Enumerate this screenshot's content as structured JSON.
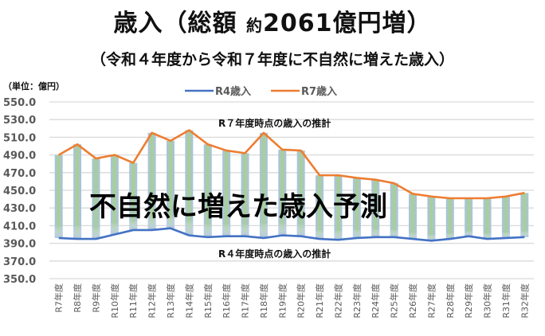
{
  "title": {
    "main": "歳入（総額 ",
    "small": "約",
    "amount": "2061",
    "rest": "億円増）"
  },
  "subtitle": "（令和４年度から令和７年度に不自然に増えた歳入）",
  "chart_data": {
    "type": "line",
    "unit_label": "（単位：億円）",
    "ylim": [
      350,
      550
    ],
    "yticks": [
      "350.0",
      "370.0",
      "390.0",
      "410.0",
      "430.0",
      "450.0",
      "470.0",
      "490.0",
      "510.0",
      "530.0",
      "550.0"
    ],
    "ytick_values": [
      350,
      370,
      390,
      410,
      430,
      450,
      470,
      490,
      510,
      530,
      550
    ],
    "grid": true,
    "legend_position": "top-center",
    "categories": [
      "R7年度",
      "R8年度",
      "R9年度",
      "R10年度",
      "R11年度",
      "R12年度",
      "R13年度",
      "R14年度",
      "R15年度",
      "R16年度",
      "R17年度",
      "R18年度",
      "R19年度",
      "R20年度",
      "R21年度",
      "R22年度",
      "R23年度",
      "R24年度",
      "R25年度",
      "R26年度",
      "R27年度",
      "R28年度",
      "R29年度",
      "R30年度",
      "R31年度",
      "R32年度"
    ],
    "series": [
      {
        "name": "R4歳入",
        "color": "#4472c4",
        "values": [
          396,
          395,
          395,
          400,
          405,
          405,
          407,
          399,
          397,
          398,
          398,
          396,
          399,
          398,
          395,
          394,
          396,
          397,
          397,
          395,
          393,
          395,
          398,
          395,
          396,
          397
        ]
      },
      {
        "name": "R7歳入",
        "color": "#ed7d31",
        "values": [
          490,
          502,
          486,
          490,
          481,
          515,
          506,
          518,
          502,
          495,
          492,
          515,
          496,
          495,
          467,
          467,
          464,
          462,
          458,
          446,
          443,
          441,
          441,
          441,
          443,
          447
        ]
      }
    ],
    "annotations": {
      "upper": "R７年度時点の歳入の推計",
      "lower": "R４年度時点の歳入の推計",
      "center": "不自然に増えた歳入予測"
    }
  }
}
